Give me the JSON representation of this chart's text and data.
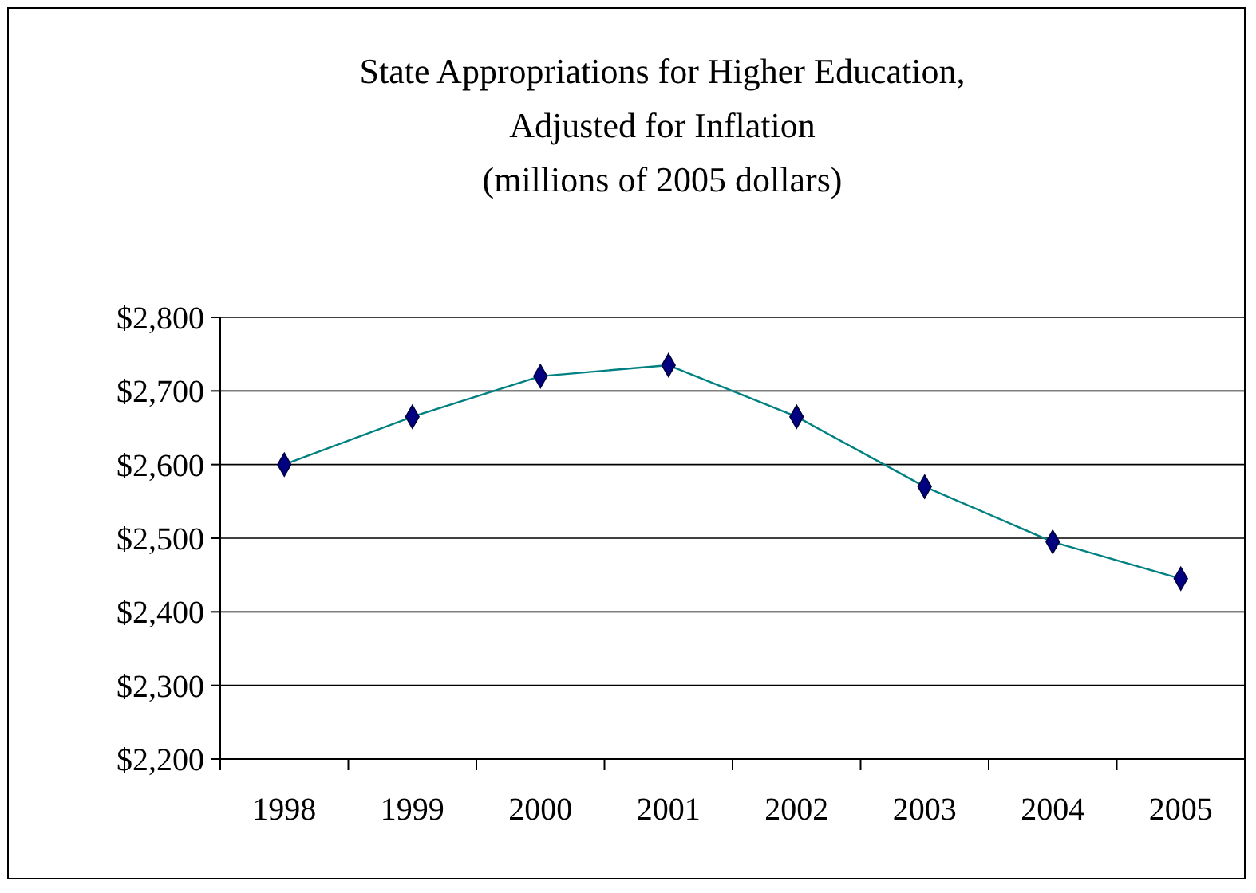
{
  "chart_data": {
    "type": "line",
    "title": "State Appropriations for Higher Education,\nAdjusted for Inflation\n(millions of 2005 dollars)",
    "categories": [
      "1998",
      "1999",
      "2000",
      "2001",
      "2002",
      "2003",
      "2004",
      "2005"
    ],
    "series": [
      {
        "color": "#008080",
        "values": [
          2600,
          2665,
          2720,
          2735,
          2665,
          2570,
          2495,
          2445
        ]
      }
    ],
    "ylim": [
      2200,
      2800
    ],
    "yticks": [
      {
        "value": 2200,
        "label": "$2,200"
      },
      {
        "value": 2300,
        "label": "$2,300"
      },
      {
        "value": 2400,
        "label": "$2,400"
      },
      {
        "value": 2500,
        "label": "$2,500"
      },
      {
        "value": 2600,
        "label": "$2,600"
      },
      {
        "value": 2700,
        "label": "$2,700"
      },
      {
        "value": 2800,
        "label": "$2,800"
      }
    ],
    "grid": "y",
    "marker": "diamond",
    "line_style": "solid"
  }
}
